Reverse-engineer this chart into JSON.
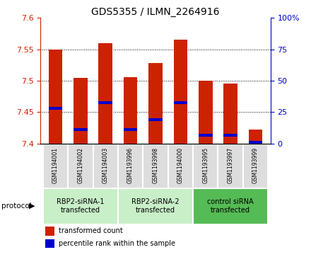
{
  "title": "GDS5355 / ILMN_2264916",
  "samples": [
    "GSM1194001",
    "GSM1194002",
    "GSM1194003",
    "GSM1193996",
    "GSM1193998",
    "GSM1194000",
    "GSM1193995",
    "GSM1193997",
    "GSM1193999"
  ],
  "red_values": [
    7.55,
    7.505,
    7.56,
    7.506,
    7.528,
    7.565,
    7.5,
    7.495,
    7.422
  ],
  "blue_values": [
    7.456,
    7.422,
    7.465,
    7.422,
    7.438,
    7.465,
    7.413,
    7.413,
    7.402
  ],
  "ylim": [
    7.4,
    7.6
  ],
  "yticks_left": [
    7.4,
    7.45,
    7.5,
    7.55,
    7.6
  ],
  "yticks_right": [
    0,
    25,
    50,
    75,
    100
  ],
  "right_ylim": [
    0,
    100
  ],
  "groups": [
    {
      "label": "RBP2-siRNA-1\ntransfected",
      "indices": [
        0,
        1,
        2
      ],
      "color": "#c8efc8"
    },
    {
      "label": "RBP2-siRNA-2\ntransfected",
      "indices": [
        3,
        4,
        5
      ],
      "color": "#c8efc8"
    },
    {
      "label": "control siRNA\ntransfected",
      "indices": [
        6,
        7,
        8
      ],
      "color": "#55bb55"
    }
  ],
  "bar_color": "#cc2200",
  "blue_color": "#0000cc",
  "bar_width": 0.55,
  "protocol_label": "protocol",
  "legend_red": "transformed count",
  "legend_blue": "percentile rank within the sample",
  "sample_box_color": "#dddddd"
}
